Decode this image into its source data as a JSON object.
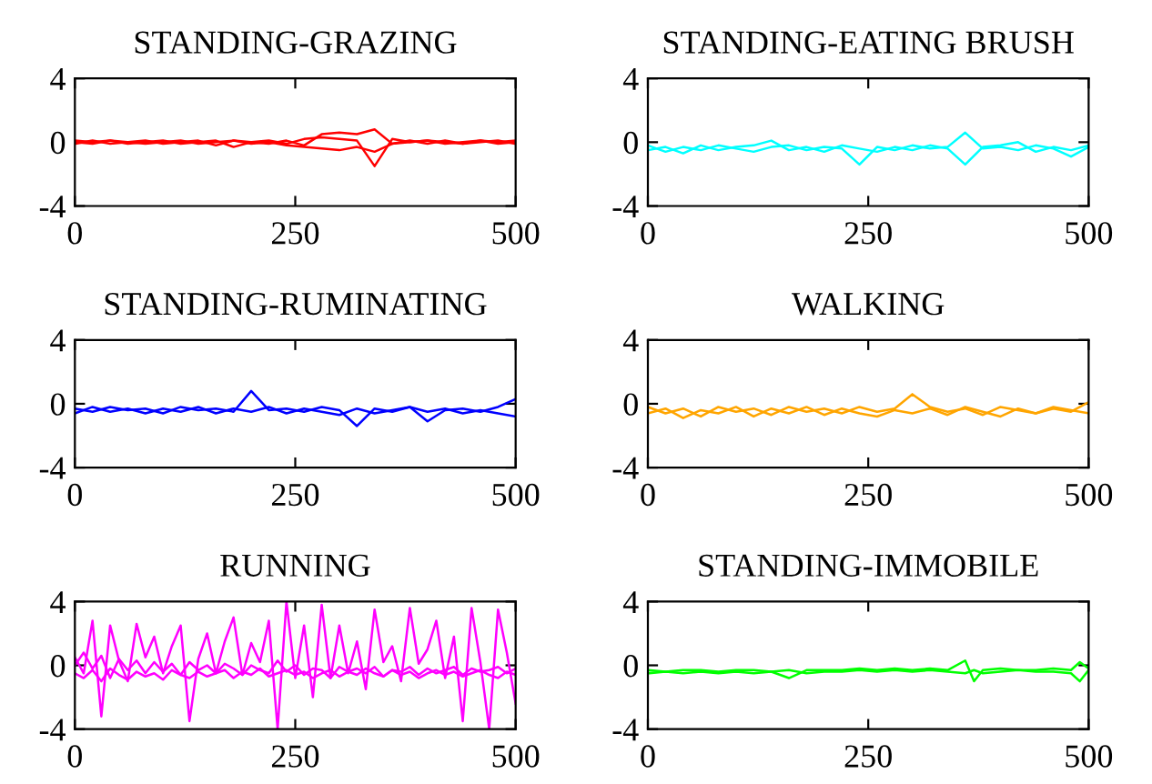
{
  "chart_data": [
    {
      "type": "line",
      "title": "STANDING-GRAZING",
      "x": [
        0,
        20,
        40,
        60,
        80,
        100,
        120,
        140,
        160,
        180,
        200,
        220,
        240,
        260,
        280,
        300,
        320,
        340,
        360,
        380,
        400,
        420,
        440,
        460,
        480,
        500
      ],
      "xlim": [
        0,
        500
      ],
      "xticks": [
        0,
        250,
        500
      ],
      "ylim": [
        -4,
        4
      ],
      "yticks": [
        -4,
        0,
        4
      ],
      "grid": false,
      "series": [
        {
          "color": "#ff0000",
          "values": [
            0.1,
            0,
            0.1,
            -0.1,
            0,
            0.1,
            -0.1,
            0,
            0.1,
            -0.3,
            0,
            0.1,
            -0.1,
            0.2,
            0.3,
            0.2,
            0.1,
            -1.5,
            0.2,
            0,
            0.1,
            -0.1,
            0,
            0.1,
            0,
            0.1
          ]
        },
        {
          "color": "#ff0000",
          "values": [
            -0.1,
            0.1,
            -0.1,
            0,
            0.1,
            -0.1,
            0,
            0.1,
            -0.2,
            0.1,
            0,
            -0.1,
            0.1,
            -0.2,
            0.5,
            0.6,
            0.5,
            0.8,
            -0.1,
            0.1,
            -0.1,
            0.1,
            -0.1,
            0,
            0.1,
            -0.1
          ]
        },
        {
          "color": "#ff0000",
          "values": [
            0,
            -0.1,
            0.1,
            0,
            -0.1,
            0,
            0.1,
            -0.1,
            0,
            0.1,
            -0.1,
            0,
            -0.2,
            -0.3,
            -0.4,
            -0.5,
            -0.3,
            -0.6,
            -0.1,
            0,
            0.1,
            0,
            -0.1,
            0.1,
            -0.1,
            0
          ]
        }
      ]
    },
    {
      "type": "line",
      "title": "STANDING-EATING BRUSH",
      "x": [
        0,
        20,
        40,
        60,
        80,
        100,
        120,
        140,
        160,
        180,
        200,
        220,
        240,
        260,
        280,
        300,
        320,
        340,
        360,
        380,
        400,
        420,
        440,
        460,
        480,
        500
      ],
      "xlim": [
        0,
        500
      ],
      "xticks": [
        0,
        250,
        500
      ],
      "ylim": [
        -4,
        4
      ],
      "yticks": [
        -4,
        0,
        4
      ],
      "grid": false,
      "series": [
        {
          "color": "#00ffff",
          "values": [
            -0.2,
            -0.6,
            -0.3,
            -0.5,
            -0.2,
            -0.4,
            -0.6,
            -0.3,
            -0.2,
            -0.5,
            -0.3,
            -0.4,
            -1.4,
            -0.3,
            -0.5,
            -0.2,
            -0.4,
            -0.3,
            0.6,
            -0.4,
            -0.3,
            -0.5,
            -0.2,
            -0.4,
            -0.9,
            -0.3
          ]
        },
        {
          "color": "#00ffff",
          "values": [
            -0.5,
            -0.3,
            -0.7,
            -0.2,
            -0.5,
            -0.3,
            -0.2,
            0.1,
            -0.5,
            -0.3,
            -0.6,
            -0.2,
            -0.4,
            -0.6,
            -0.3,
            -0.5,
            -0.2,
            -0.4,
            -1.4,
            -0.3,
            -0.2,
            0,
            -0.6,
            -0.3,
            -0.5,
            -0.2
          ]
        }
      ]
    },
    {
      "type": "line",
      "title": "STANDING-RUMINATING",
      "x": [
        0,
        20,
        40,
        60,
        80,
        100,
        120,
        140,
        160,
        180,
        200,
        220,
        240,
        260,
        280,
        300,
        320,
        340,
        360,
        380,
        400,
        420,
        440,
        460,
        480,
        500
      ],
      "xlim": [
        0,
        500
      ],
      "xticks": [
        0,
        250,
        500
      ],
      "ylim": [
        -4,
        4
      ],
      "yticks": [
        -4,
        0,
        4
      ],
      "grid": false,
      "series": [
        {
          "color": "#0000ff",
          "values": [
            -0.3,
            -0.5,
            -0.2,
            -0.4,
            -0.3,
            -0.6,
            -0.2,
            -0.4,
            -0.3,
            -0.5,
            0.8,
            -0.4,
            -0.3,
            -0.5,
            -0.2,
            -0.4,
            -1.4,
            -0.3,
            -0.5,
            -0.2,
            -1.1,
            -0.4,
            -0.3,
            -0.5,
            -0.2,
            0.3
          ]
        },
        {
          "color": "#0000ff",
          "values": [
            -0.6,
            -0.2,
            -0.5,
            -0.3,
            -0.6,
            -0.3,
            -0.5,
            -0.2,
            -0.6,
            -0.3,
            -0.5,
            -0.2,
            -0.6,
            -0.3,
            -0.5,
            -0.7,
            -0.3,
            -0.6,
            -0.4,
            -0.2,
            -0.5,
            -0.3,
            -0.6,
            -0.4,
            -0.6,
            -0.8
          ]
        }
      ]
    },
    {
      "type": "line",
      "title": "WALKING",
      "x": [
        0,
        20,
        40,
        60,
        80,
        100,
        120,
        140,
        160,
        180,
        200,
        220,
        240,
        260,
        280,
        300,
        320,
        340,
        360,
        380,
        400,
        420,
        440,
        460,
        480,
        500
      ],
      "xlim": [
        0,
        500
      ],
      "xticks": [
        0,
        250,
        500
      ],
      "ylim": [
        -4,
        4
      ],
      "yticks": [
        -4,
        0,
        4
      ],
      "grid": false,
      "series": [
        {
          "color": "#ffa500",
          "values": [
            -0.2,
            -0.6,
            -0.3,
            -0.8,
            -0.2,
            -0.5,
            -0.3,
            -0.7,
            -0.2,
            -0.5,
            -0.3,
            -0.6,
            -0.2,
            -0.5,
            -0.3,
            0.6,
            -0.2,
            -0.5,
            -0.3,
            -0.7,
            -0.2,
            -0.4,
            -0.6,
            -0.3,
            -0.5,
            0.1
          ]
        },
        {
          "color": "#ffa500",
          "values": [
            -0.6,
            -0.3,
            -0.9,
            -0.4,
            -0.6,
            -0.2,
            -0.8,
            -0.3,
            -0.6,
            -0.2,
            -0.7,
            -0.3,
            -0.6,
            -0.8,
            -0.4,
            -0.6,
            -0.3,
            -0.7,
            -0.2,
            -0.5,
            -0.8,
            -0.3,
            -0.6,
            -0.2,
            -0.4,
            -0.6
          ]
        }
      ]
    },
    {
      "type": "line",
      "title": "RUNNING",
      "x": [
        0,
        10,
        20,
        30,
        40,
        50,
        60,
        70,
        80,
        90,
        100,
        110,
        120,
        130,
        140,
        150,
        160,
        170,
        180,
        190,
        200,
        210,
        220,
        230,
        240,
        250,
        260,
        270,
        280,
        290,
        300,
        310,
        320,
        330,
        340,
        350,
        360,
        370,
        380,
        390,
        400,
        410,
        420,
        430,
        440,
        450,
        460,
        470,
        480,
        490,
        500
      ],
      "xlim": [
        0,
        500
      ],
      "xticks": [
        0,
        250,
        500
      ],
      "ylim": [
        -4,
        4
      ],
      "yticks": [
        -4,
        0,
        4
      ],
      "grid": false,
      "series": [
        {
          "color": "#ff00ff",
          "values": [
            0.5,
            -0.5,
            2.8,
            -3.2,
            2.5,
            0.3,
            -1,
            2.6,
            0.5,
            1.8,
            -0.5,
            1.2,
            2.5,
            -3.5,
            0.4,
            2,
            -0.5,
            1.5,
            3,
            -0.6,
            1.4,
            0.2,
            2.8,
            -4,
            4,
            -0.8,
            2.5,
            -2,
            3.8,
            -0.8,
            2.5,
            -0.5,
            1.5,
            -1.5,
            3.5,
            0.2,
            1.2,
            -1,
            3.6,
            0.1,
            1,
            2.8,
            -0.8,
            1.8,
            -3.5,
            3.6,
            0.2,
            -4,
            3.5,
            0.8,
            -2.4
          ]
        },
        {
          "color": "#ff00ff",
          "values": [
            0,
            0.8,
            -0.2,
            0.6,
            -0.8,
            0.4,
            -0.3,
            0.3,
            -0.5,
            0.2,
            -0.4,
            0.1,
            -0.6,
            0.2,
            -0.3,
            0,
            -0.5,
            0.1,
            -0.2,
            -0.6,
            0,
            -0.3,
            -0.5,
            0.3,
            -0.4,
            0,
            -0.6,
            -0.2,
            -0.3,
            -0.8,
            -0.1,
            -0.4,
            -0.2,
            -0.5,
            -0.1,
            -0.7,
            -0.3,
            -0.4,
            -0.1,
            -0.6,
            -0.2,
            -0.5,
            -0.3,
            -0.1,
            -0.6,
            -0.2,
            -0.4,
            -0.3,
            -0.1,
            -0.5,
            -0.2
          ]
        },
        {
          "color": "#ff00ff",
          "values": [
            -0.5,
            -0.8,
            -0.3,
            -1,
            -0.2,
            -0.6,
            -0.9,
            -0.4,
            -0.7,
            -0.5,
            -0.9,
            -0.3,
            -0.6,
            -0.8,
            -0.4,
            -0.7,
            -0.5,
            -0.3,
            -0.8,
            -0.4,
            -0.6,
            -0.2,
            -0.7,
            -0.5,
            -0.3,
            -0.6,
            -0.4,
            -0.8,
            -0.5,
            -0.3,
            -0.7,
            -0.4,
            -0.6,
            -0.2,
            -0.5,
            -0.7,
            -0.3,
            -0.6,
            -0.4,
            -0.8,
            -0.5,
            -0.3,
            -0.6,
            -0.4,
            -0.7,
            -0.5,
            -0.3,
            -0.6,
            -0.8,
            -0.4,
            -0.6
          ]
        }
      ]
    },
    {
      "type": "line",
      "title": "STANDING-IMMOBILE",
      "x": [
        0,
        20,
        40,
        60,
        80,
        100,
        120,
        140,
        160,
        180,
        200,
        220,
        240,
        260,
        280,
        300,
        320,
        340,
        360,
        370,
        380,
        400,
        420,
        440,
        460,
        480,
        490,
        500
      ],
      "xlim": [
        0,
        500
      ],
      "xticks": [
        0,
        250,
        500
      ],
      "ylim": [
        -4,
        4
      ],
      "yticks": [
        -4,
        0,
        4
      ],
      "grid": false,
      "series": [
        {
          "color": "#00ff00",
          "values": [
            -0.3,
            -0.4,
            -0.3,
            -0.3,
            -0.4,
            -0.3,
            -0.3,
            -0.4,
            -0.8,
            -0.3,
            -0.3,
            -0.3,
            -0.2,
            -0.3,
            -0.2,
            -0.3,
            -0.2,
            -0.3,
            0.3,
            -1,
            -0.3,
            -0.2,
            -0.3,
            -0.3,
            -0.2,
            -0.3,
            0.2,
            -0.2
          ]
        },
        {
          "color": "#00ff00",
          "values": [
            -0.5,
            -0.4,
            -0.5,
            -0.4,
            -0.5,
            -0.4,
            -0.5,
            -0.4,
            -0.3,
            -0.5,
            -0.4,
            -0.4,
            -0.3,
            -0.4,
            -0.3,
            -0.4,
            -0.3,
            -0.4,
            -0.5,
            -0.3,
            -0.5,
            -0.4,
            -0.3,
            -0.4,
            -0.4,
            -0.5,
            -1,
            -0.3
          ]
        }
      ]
    }
  ]
}
